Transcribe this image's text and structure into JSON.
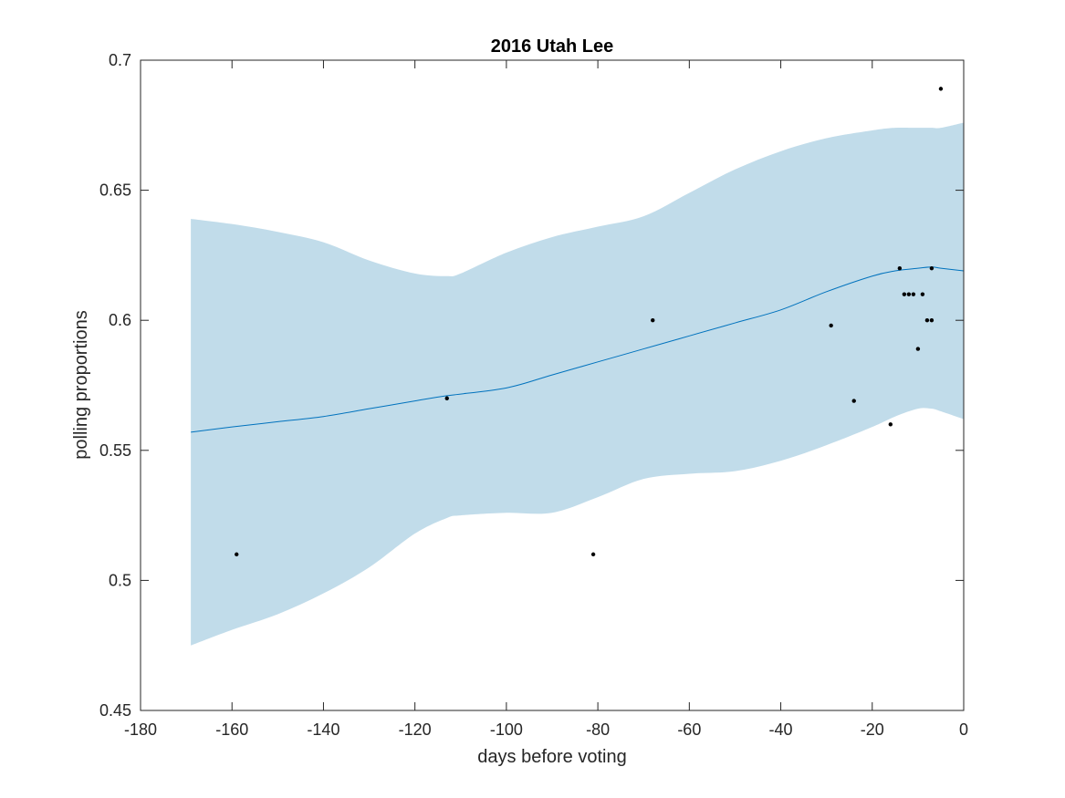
{
  "chart_data": {
    "type": "line",
    "title": "2016 Utah Lee",
    "xlabel": "days before voting",
    "ylabel": "polling proportions",
    "xlim": [
      -180,
      0
    ],
    "ylim": [
      0.45,
      0.7
    ],
    "xticks": [
      -180,
      -160,
      -140,
      -120,
      -100,
      -80,
      -60,
      -40,
      -20,
      0
    ],
    "xtick_labels": [
      "-180",
      "-160",
      "-140",
      "-120",
      "-100",
      "-80",
      "-60",
      "-40",
      "-20",
      "0"
    ],
    "yticks": [
      0.45,
      0.5,
      0.55,
      0.6,
      0.65,
      0.7
    ],
    "ytick_labels": [
      "0.45",
      "0.5",
      "0.55",
      "0.6",
      "0.65",
      "0.7"
    ],
    "grid": false,
    "colors": {
      "band": "#c1dcea",
      "line": "#0072bd",
      "points": "#000000",
      "axes": "#262626"
    },
    "band": {
      "x": [
        -169,
        -160,
        -150,
        -140,
        -130,
        -120,
        -113,
        -110,
        -100,
        -90,
        -80,
        -70,
        -60,
        -50,
        -40,
        -30,
        -20,
        -15,
        -10,
        -7,
        -5,
        0
      ],
      "upper": [
        0.639,
        0.637,
        0.634,
        0.63,
        0.623,
        0.618,
        0.617,
        0.618,
        0.626,
        0.632,
        0.636,
        0.64,
        0.649,
        0.658,
        0.665,
        0.67,
        0.673,
        0.674,
        0.674,
        0.674,
        0.674,
        0.676
      ],
      "lower": [
        0.475,
        0.481,
        0.487,
        0.495,
        0.505,
        0.518,
        0.524,
        0.525,
        0.526,
        0.526,
        0.532,
        0.539,
        0.541,
        0.542,
        0.546,
        0.552,
        0.559,
        0.563,
        0.566,
        0.566,
        0.565,
        0.562
      ]
    },
    "series": [
      {
        "x": [
          -169,
          -160,
          -150,
          -140,
          -130,
          -120,
          -113,
          -100,
          -90,
          -80,
          -70,
          -60,
          -50,
          -40,
          -30,
          -20,
          -15,
          -10,
          -7,
          -5,
          0
        ],
        "values": [
          0.557,
          0.559,
          0.561,
          0.563,
          0.566,
          0.569,
          0.571,
          0.574,
          0.579,
          0.584,
          0.589,
          0.594,
          0.599,
          0.604,
          0.611,
          0.617,
          0.619,
          0.62,
          0.6205,
          0.62,
          0.619
        ]
      }
    ],
    "points": {
      "x": [
        -159,
        -113,
        -81,
        -68,
        -29,
        -24,
        -16,
        -14,
        -13,
        -12,
        -11,
        -10,
        -9,
        -8,
        -7,
        -7,
        -5
      ],
      "y": [
        0.51,
        0.57,
        0.51,
        0.6,
        0.598,
        0.569,
        0.56,
        0.62,
        0.61,
        0.61,
        0.61,
        0.589,
        0.61,
        0.6,
        0.62,
        0.6,
        0.689
      ]
    }
  }
}
